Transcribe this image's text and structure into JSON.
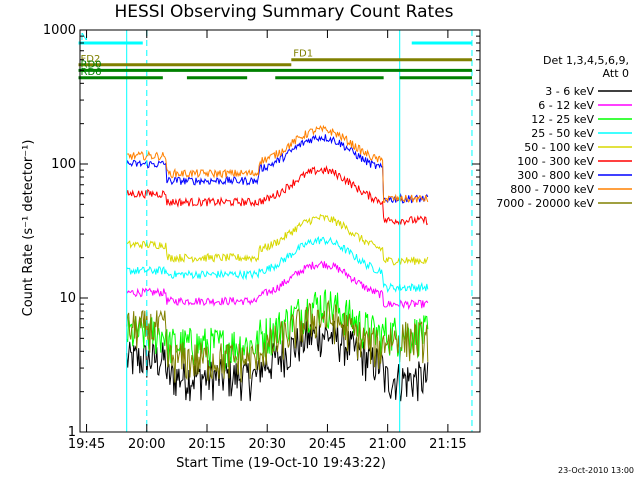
{
  "chart_data": {
    "type": "line",
    "title": "HESSI Observing Summary Count Rates",
    "xlabel": "Start Time (19-Oct-10 19:43:22)",
    "ylabel": "Count Rate (s⁻¹ detector⁻¹)",
    "y_scale": "log",
    "ylim": [
      1,
      1000
    ],
    "xlim": [
      "19:43:22",
      "21:23:00"
    ],
    "x_ticks": [
      "19:45",
      "20:00",
      "20:15",
      "20:30",
      "20:45",
      "21:00",
      "21:15"
    ],
    "y_ticks": [
      "1",
      "10",
      "100",
      "1000"
    ],
    "legend_header": [
      "Det 1,3,4,5,6,9,",
      "Att 0"
    ],
    "legend_position": "right",
    "timestamp": "23-Oct-2010 13:00",
    "series": [
      {
        "name": "3 - 6 keV",
        "color": "#000000"
      },
      {
        "name": "6 - 12 keV",
        "color": "#ff00ff"
      },
      {
        "name": "12 - 25 keV",
        "color": "#00ff00"
      },
      {
        "name": "25 - 50 keV",
        "color": "#00ffff"
      },
      {
        "name": "50 - 100 keV",
        "color": "#d8d800"
      },
      {
        "name": "100 - 300 keV",
        "color": "#ff0000"
      },
      {
        "name": "300 - 800 keV",
        "color": "#0000ff"
      },
      {
        "name": "800 - 7000 keV",
        "color": "#ff8000"
      },
      {
        "name": "7000 - 20000 keV",
        "color": "#808000"
      }
    ],
    "flag_bars": [
      {
        "label": "N",
        "color": "#00ffff",
        "level": 800,
        "segments": [
          [
            "19:43",
            "19:59"
          ],
          [
            "21:06",
            "21:21"
          ]
        ]
      },
      {
        "label": "FD1",
        "color": "#808000",
        "level": 600,
        "segments": [
          [
            "20:36",
            "21:21"
          ]
        ]
      },
      {
        "label": "FD2",
        "color": "#808000",
        "level": 550,
        "segments": [
          [
            "19:43",
            "20:36"
          ]
        ]
      },
      {
        "label": "RD0",
        "color": "#008000",
        "level": 500,
        "segments": [
          [
            "19:43",
            "21:21"
          ]
        ]
      },
      {
        "label": "RD6",
        "color": "#008000",
        "level": 440,
        "segments": [
          [
            "19:43",
            "20:04"
          ],
          [
            "20:10",
            "20:25"
          ],
          [
            "20:32",
            "20:59"
          ],
          [
            "21:03",
            "21:21"
          ]
        ]
      }
    ],
    "cyan_vertical_lines": [
      "19:55",
      "20:00",
      "21:03",
      "21:21"
    ],
    "data_window": [
      "19:55",
      "21:10"
    ],
    "segment_breaks": [
      "20:05",
      "20:28",
      "20:59"
    ],
    "shape_note": "piecewise levels"
  }
}
